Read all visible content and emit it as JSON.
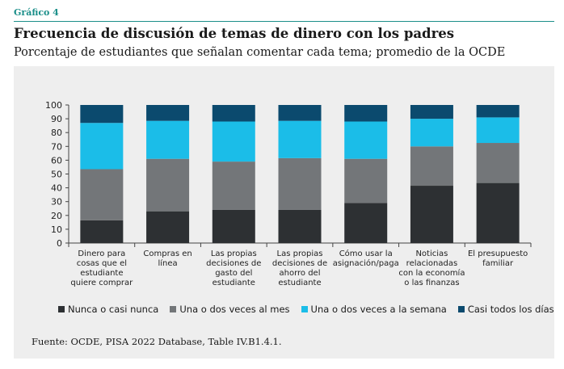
{
  "header": {
    "label": "Gráfico 4",
    "title": "Frecuencia de discusión de temas de dinero con los padres",
    "subtitle": "Porcentaje de estudiantes que señalan comentar cada tema; promedio de la OCDE"
  },
  "source": "Fuente: OCDE, PISA 2022 Database, Table IV.B1.4.1.",
  "colors": {
    "nunca": "#2d3033",
    "mes": "#737679",
    "semana": "#1bbde8",
    "dias": "#0b4a6e"
  },
  "chart_data": {
    "type": "bar",
    "stacked": true,
    "ylim": [
      0,
      100
    ],
    "yticks": [
      0,
      10,
      20,
      30,
      40,
      50,
      60,
      70,
      80,
      90,
      100
    ],
    "categories": [
      [
        "Dinero para",
        "cosas que el",
        "estudiante",
        "quiere comprar"
      ],
      [
        "Compras en",
        "línea"
      ],
      [
        "Las propias",
        "decisiones de",
        "gasto del",
        "estudiante"
      ],
      [
        "Las propias",
        "decisiones de",
        "ahorro del",
        "estudiante"
      ],
      [
        "Cómo usar la",
        "asignación/paga"
      ],
      [
        "Noticias",
        "relacionadas",
        "con la economía",
        "o las finanzas"
      ],
      [
        "El presupuesto",
        "familiar"
      ]
    ],
    "series": [
      {
        "name": "Nunca o casi nunca",
        "color": "#2d3033",
        "values": [
          16.5,
          23,
          24,
          24,
          29,
          41.5,
          43.5
        ]
      },
      {
        "name": "Una o dos veces al mes",
        "color": "#737679",
        "values": [
          37,
          38,
          35,
          37.5,
          32,
          28.5,
          29
        ]
      },
      {
        "name": "Una o dos veces a la semana",
        "color": "#1bbde8",
        "values": [
          33.5,
          27.5,
          29,
          27,
          27,
          20,
          18.5
        ]
      },
      {
        "name": "Casi todos los días",
        "color": "#0b4a6e",
        "values": [
          13,
          11.5,
          12,
          11.5,
          12,
          10,
          9
        ]
      }
    ],
    "legend_position": "bottom",
    "grid": false
  }
}
